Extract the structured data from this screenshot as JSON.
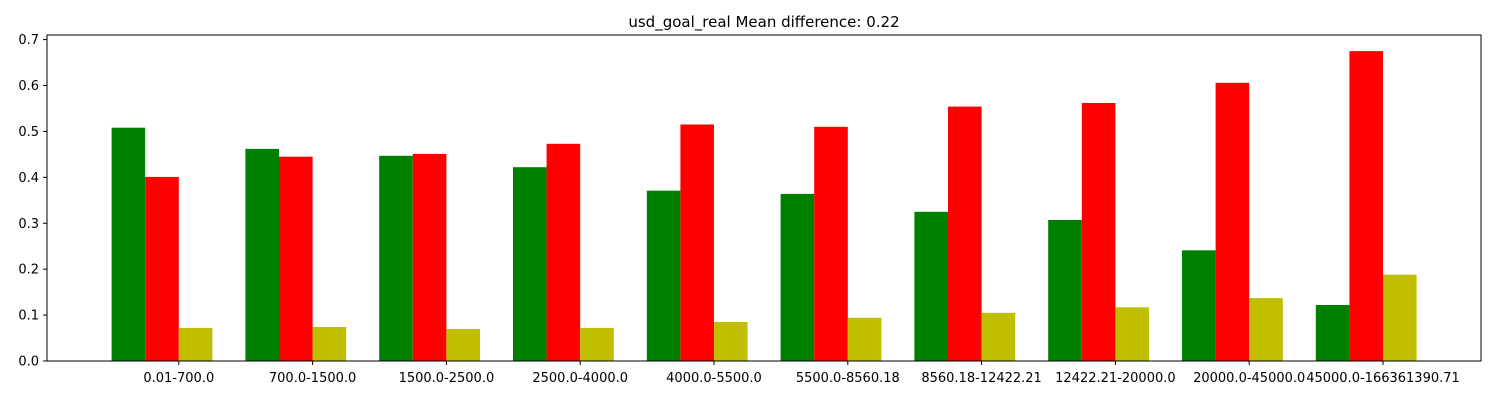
{
  "chart_data": {
    "type": "bar",
    "title": "usd_goal_real Mean difference: 0.22",
    "xlabel": "",
    "ylabel": "",
    "categories": [
      "0.01-700.0",
      "700.0-1500.0",
      "1500.0-2500.0",
      "2500.0-4000.0",
      "4000.0-5500.0",
      "5500.0-8560.18",
      "8560.18-12422.21",
      "12422.21-20000.0",
      "20000.0-45000.0",
      "45000.0-166361390.71"
    ],
    "series": [
      {
        "color": "#008000",
        "values": [
          0.508,
          0.462,
          0.447,
          0.422,
          0.371,
          0.364,
          0.325,
          0.307,
          0.241,
          0.122
        ]
      },
      {
        "color": "#ff0000",
        "values": [
          0.401,
          0.445,
          0.451,
          0.473,
          0.515,
          0.51,
          0.554,
          0.562,
          0.606,
          0.675
        ]
      },
      {
        "color": "#bfbf00",
        "values": [
          0.072,
          0.074,
          0.07,
          0.072,
          0.085,
          0.094,
          0.105,
          0.117,
          0.137,
          0.188
        ]
      }
    ],
    "ylim": [
      0,
      0.71
    ],
    "yticks": [
      "0.0",
      "0.1",
      "0.2",
      "0.3",
      "0.4",
      "0.5",
      "0.6",
      "0.7"
    ],
    "ytick_values": [
      0,
      0.1,
      0.2,
      0.3,
      0.4,
      0.5,
      0.6,
      0.7
    ],
    "grid": false,
    "legend": "none"
  }
}
